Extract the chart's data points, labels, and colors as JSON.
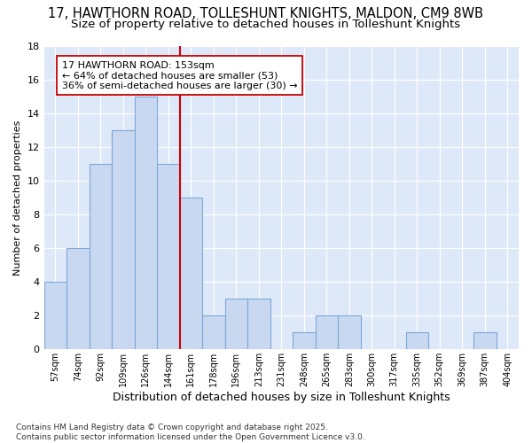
{
  "title1": "17, HAWTHORN ROAD, TOLLESHUNT KNIGHTS, MALDON, CM9 8WB",
  "title2": "Size of property relative to detached houses in Tolleshunt Knights",
  "xlabel": "Distribution of detached houses by size in Tolleshunt Knights",
  "ylabel": "Number of detached properties",
  "categories": [
    "57sqm",
    "74sqm",
    "92sqm",
    "109sqm",
    "126sqm",
    "144sqm",
    "161sqm",
    "178sqm",
    "196sqm",
    "213sqm",
    "231sqm",
    "248sqm",
    "265sqm",
    "283sqm",
    "300sqm",
    "317sqm",
    "335sqm",
    "352sqm",
    "369sqm",
    "387sqm",
    "404sqm"
  ],
  "values": [
    4,
    6,
    11,
    13,
    15,
    11,
    9,
    2,
    3,
    3,
    0,
    1,
    2,
    2,
    0,
    0,
    1,
    0,
    0,
    1,
    0
  ],
  "bar_color": "#c8d8f0",
  "bar_edge_color": "#7fa8d8",
  "vline_x": 5.5,
  "vline_color": "#cc0000",
  "annotation_line1": "17 HAWTHORN ROAD: 153sqm",
  "annotation_line2": "← 64% of detached houses are smaller (53)",
  "annotation_line3": "36% of semi-detached houses are larger (30) →",
  "annotation_box_color": "#ffffff",
  "annotation_box_edge": "#cc0000",
  "ylim": [
    0,
    18
  ],
  "yticks": [
    0,
    2,
    4,
    6,
    8,
    10,
    12,
    14,
    16,
    18
  ],
  "footnote": "Contains HM Land Registry data © Crown copyright and database right 2025.\nContains public sector information licensed under the Open Government Licence v3.0.",
  "outer_bg_color": "#ffffff",
  "plot_bg_color": "#dde8f8",
  "grid_color": "#ffffff",
  "title1_fontsize": 10.5,
  "title2_fontsize": 9.5,
  "annotation_fontsize": 8,
  "footnote_fontsize": 6.5,
  "ylabel_fontsize": 8,
  "xlabel_fontsize": 9
}
